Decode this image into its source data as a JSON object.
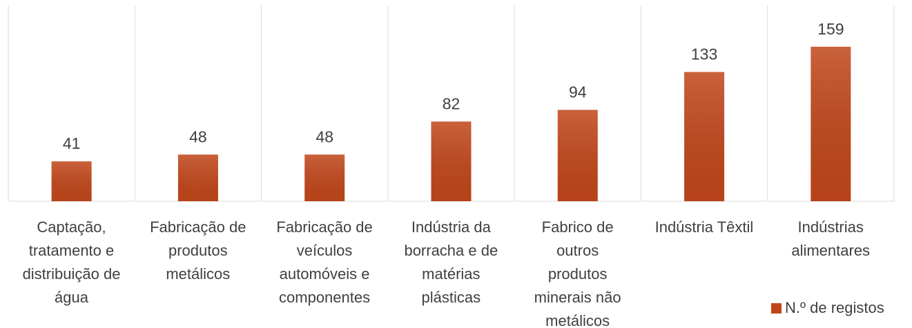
{
  "chart_data": {
    "type": "bar",
    "categories": [
      "Captação,\ntratamento  e\ndistribuição de\nágua",
      "Fabricação de\nprodutos\nmetálicos",
      "Fabricação de\nveículos\nautomóveis e\ncomponentes",
      "Indústria da\nborracha e de\nmatérias\nplásticas",
      "Fabrico de\noutros\nprodutos\nminerais não\nmetálicos",
      "Indústria Têxtil",
      "Indústrias\nalimentares"
    ],
    "series": [
      {
        "name": "N.º de registos",
        "color": "#c0461a",
        "values": [
          41,
          48,
          48,
          82,
          94,
          133,
          159
        ]
      }
    ],
    "ylim": [
      0,
      200
    ],
    "legend": "bottom-right"
  }
}
